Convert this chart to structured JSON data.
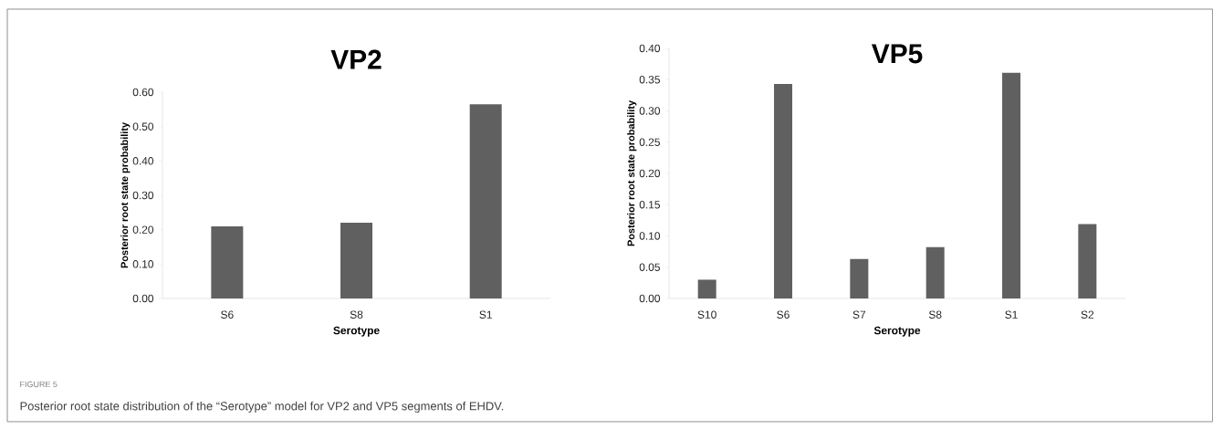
{
  "chart_data": [
    {
      "type": "bar",
      "title": "VP2",
      "xlabel": "Serotype",
      "ylabel": "Posterior root state probability",
      "categories": [
        "S6",
        "S8",
        "S1"
      ],
      "values": [
        0.21,
        0.22,
        0.565
      ],
      "color": "#606060",
      "ylim": [
        0,
        0.6
      ],
      "yticks": [
        {
          "value": 0,
          "label": "0.00"
        },
        {
          "value": 0.1,
          "label": "0.10"
        },
        {
          "value": 0.2,
          "label": "0.20"
        },
        {
          "value": 0.3,
          "label": "0.30"
        },
        {
          "value": 0.4,
          "label": "0.40"
        },
        {
          "value": 0.5,
          "label": "0.50"
        },
        {
          "value": 0.6,
          "label": "0.60"
        }
      ],
      "annotations": [
        "FIGURE 5",
        "Posterior root state distribution of the “Serotype” model for VP2 and VP5 segments of EHDV."
      ]
    },
    {
      "type": "bar",
      "title": "VP5",
      "xlabel": "Serotype",
      "ylabel": "Posterior root state probability",
      "categories": [
        "S10",
        "S6",
        "S7",
        "S8",
        "S1",
        "S2"
      ],
      "values": [
        0.03,
        0.343,
        0.063,
        0.082,
        0.361,
        0.119
      ],
      "color": "#606060",
      "ylim": [
        0,
        0.4
      ],
      "yticks": [
        {
          "value": 0,
          "label": "0.00"
        },
        {
          "value": 0.05,
          "label": "0.05"
        },
        {
          "value": 0.1,
          "label": "0.10"
        },
        {
          "value": 0.15,
          "label": "0.15"
        },
        {
          "value": 0.2,
          "label": "0.20"
        },
        {
          "value": 0.25,
          "label": "0.25"
        },
        {
          "value": 0.3,
          "label": "0.30"
        },
        {
          "value": 0.35,
          "label": "0.35"
        },
        {
          "value": 0.4,
          "label": "0.40"
        }
      ]
    }
  ]
}
